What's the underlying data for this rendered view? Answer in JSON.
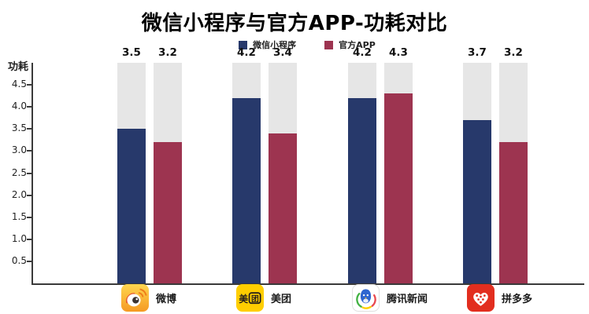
{
  "title": "微信小程序与官方APP-功耗对比",
  "ylabel": "功耗",
  "legend": {
    "items": [
      {
        "label": "微信小程序",
        "color": "#27396b"
      },
      {
        "label": "官方APP",
        "color": "#9d3450"
      }
    ]
  },
  "chart_data": {
    "type": "bar",
    "title": "微信小程序与官方APP-功耗对比",
    "xlabel": "",
    "ylabel": "功耗",
    "categories": [
      "微博",
      "美团",
      "腾讯新闻",
      "拼多多"
    ],
    "series": [
      {
        "name": "微信小程序",
        "color": "#27396b",
        "values": [
          3.5,
          4.2,
          4.2,
          3.7
        ]
      },
      {
        "name": "官方APP",
        "color": "#9d3450",
        "values": [
          3.2,
          3.4,
          4.3,
          3.2
        ]
      }
    ],
    "ylim": [
      0,
      5.0
    ],
    "yticks": [
      0.5,
      1.0,
      1.5,
      2.0,
      2.5,
      3.0,
      3.5,
      4.0,
      4.5
    ],
    "bar_background_value": 5.0,
    "bar_background_color": "#e6e6e6",
    "grid": false,
    "legend_position": "top-center"
  },
  "app_icons": [
    "weibo-icon",
    "meituan-icon",
    "tencent-news-icon",
    "pinduoduo-icon"
  ],
  "icon_text": {
    "meituan": [
      "美",
      "团"
    ]
  },
  "colors": {
    "axis": "#3a3a3a",
    "bar_blue": "#27396b",
    "bar_red": "#9d3450",
    "bar_background": "#e6e6e6",
    "weibo_yellow": "#f9a825",
    "meituan_yellow": "#ffce00",
    "pinduoduo_red": "#e22e1f"
  }
}
